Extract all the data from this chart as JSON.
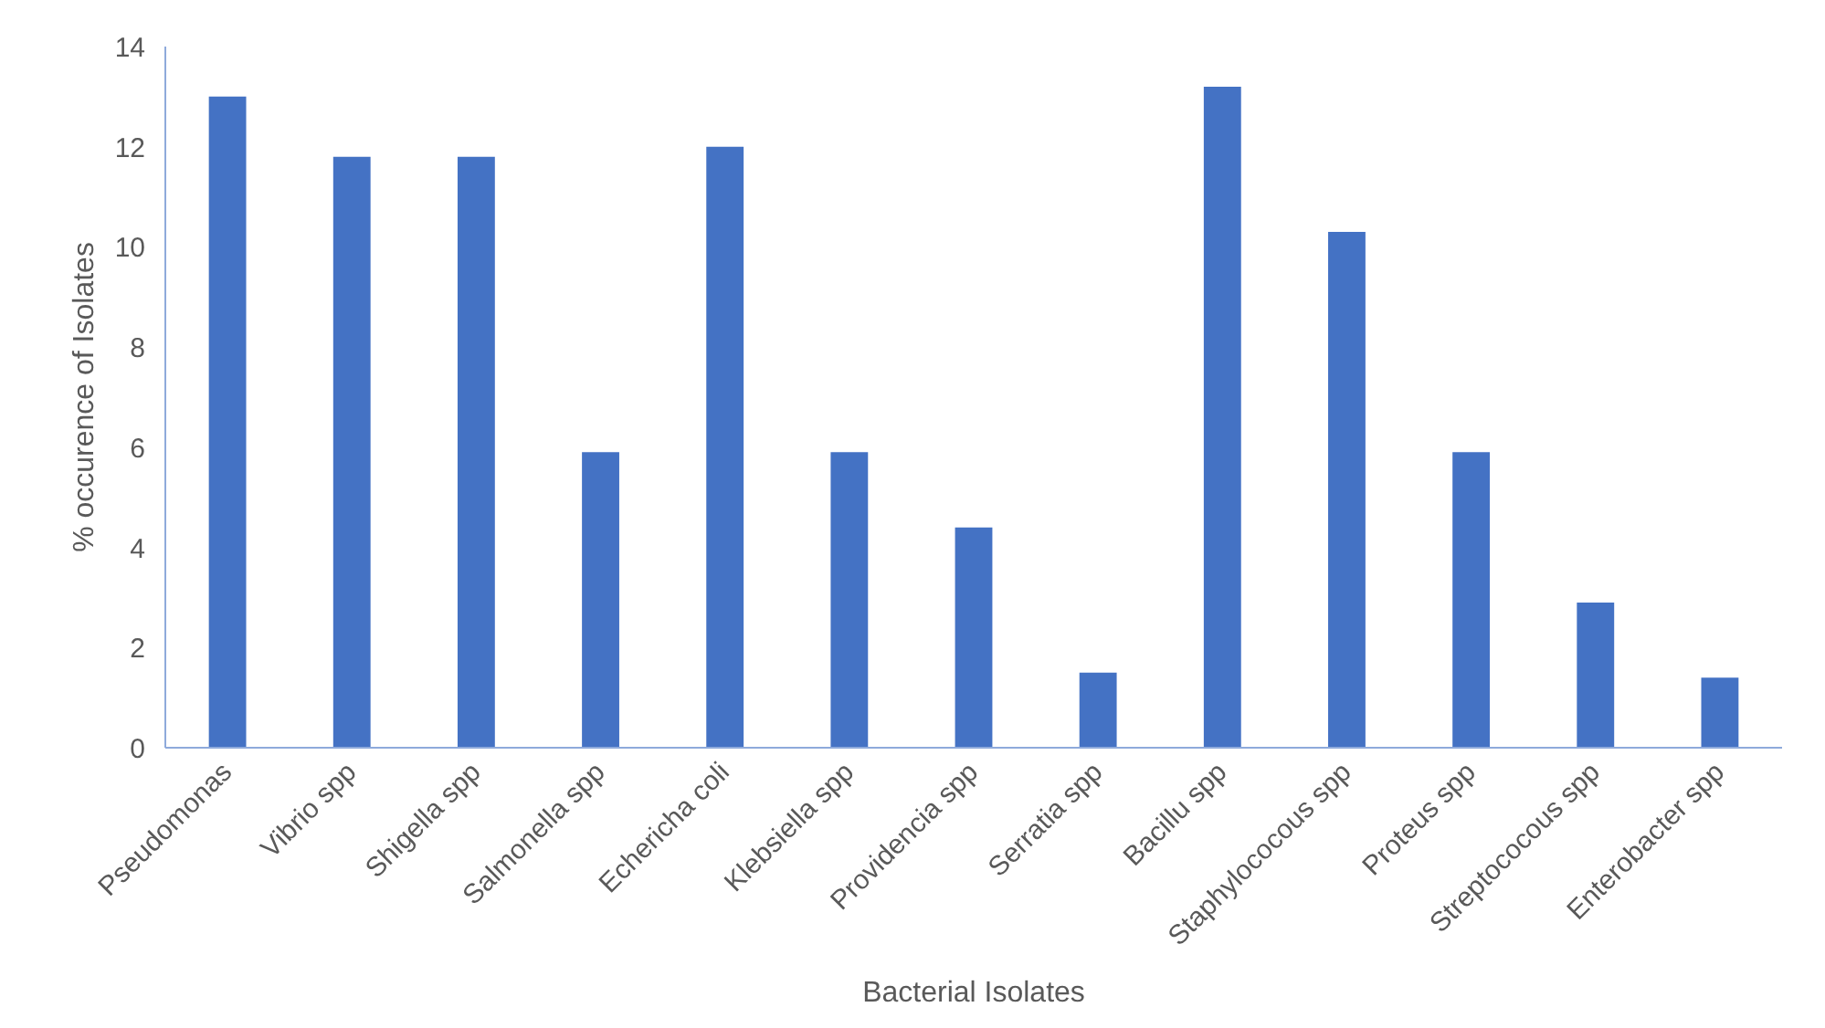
{
  "chart_data": {
    "type": "bar",
    "xlabel": "Bacterial Isolates",
    "ylabel": "% occurence of Isolates",
    "categories": [
      "Pseudomonas",
      "Vibrio spp",
      "Shigella spp",
      "Salmonella spp",
      "Echericha coli",
      "Klebsiella spp",
      "Providencia spp",
      "Serratia spp",
      "Bacillu spp",
      "Staphylococous spp",
      "Proteus spp",
      "Streptococous spp",
      "Enterobacter spp"
    ],
    "values": [
      13,
      11.8,
      11.8,
      5.9,
      12,
      5.9,
      4.4,
      1.5,
      13.2,
      10.3,
      5.9,
      2.9,
      1.4
    ],
    "color": "#4472c4",
    "ylim": [
      0,
      14
    ],
    "yticks": [
      0,
      2,
      4,
      6,
      8,
      10,
      12,
      14
    ],
    "grid": false
  }
}
